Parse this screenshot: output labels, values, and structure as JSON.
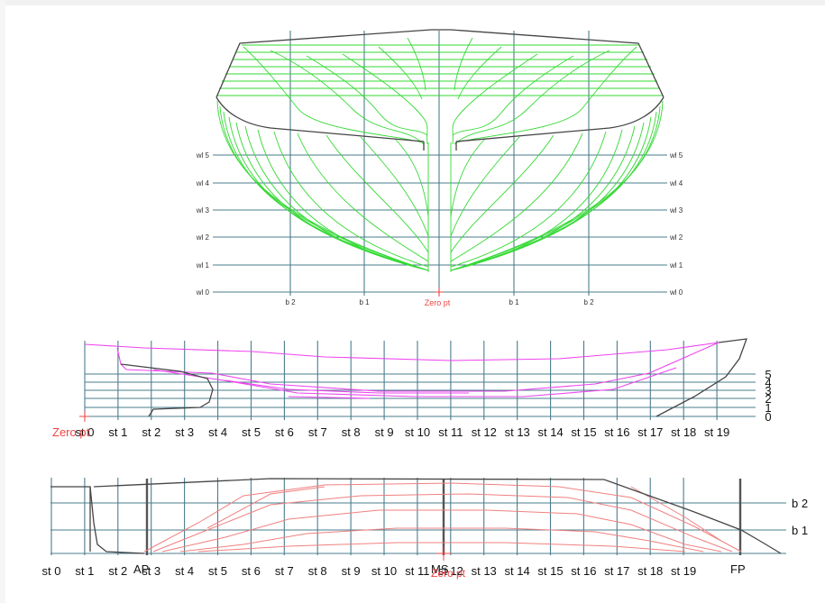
{
  "body_plan": {
    "waterlines": [
      "wl 0",
      "wl 1",
      "wl 2",
      "wl 3",
      "wl 4",
      "wl 5"
    ],
    "buttocks": [
      "b 2",
      "b 1",
      "b 1",
      "b 2"
    ],
    "zero_point": "Zero pt",
    "colors": {
      "grid": "#4a7d8d",
      "hull": "#454545",
      "sections": "#33d933",
      "zero": "#ee4444"
    }
  },
  "profile_view": {
    "stations": [
      "st 0",
      "st 1",
      "st 2",
      "st 3",
      "st 4",
      "st 5",
      "st 6",
      "st 7",
      "st 8",
      "st 9",
      "st 10",
      "st 11",
      "st 12",
      "st 13",
      "st 14",
      "st 15",
      "st 16",
      "st 17",
      "st 18",
      "st 19"
    ],
    "waterlines": [
      "0",
      "1",
      "2",
      "3",
      "4",
      "5"
    ],
    "zero_point": "Zero pt",
    "colors": {
      "lines": "#ee44ee"
    }
  },
  "plan_view": {
    "stations": [
      "st 0",
      "st 1",
      "st 2",
      "st 3",
      "st 4",
      "st 5",
      "st 6",
      "st 7",
      "st 8",
      "st 9",
      "st 10",
      "st 11",
      "st 12",
      "st 13",
      "st 14",
      "st 15",
      "st 16",
      "st 17",
      "st 18",
      "st 19"
    ],
    "markers": {
      "aft": "AP",
      "mid": "MS",
      "fwd": "FP"
    },
    "buttocks": [
      "b 2",
      "b 1"
    ],
    "zero_point": "Zero pt",
    "colors": {
      "lines": "#f08080"
    }
  }
}
